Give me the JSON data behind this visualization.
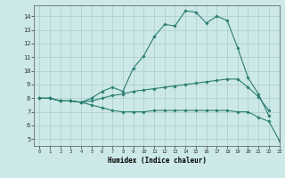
{
  "title": "",
  "xlabel": "Humidex (Indice chaleur)",
  "bg_color": "#cce8e8",
  "grid_color": "#aacccc",
  "line_color": "#2a7f6f",
  "xlim": [
    -0.5,
    23
  ],
  "ylim": [
    4.5,
    14.8
  ],
  "yticks": [
    5,
    6,
    7,
    8,
    9,
    10,
    11,
    12,
    13,
    14
  ],
  "xticks": [
    0,
    1,
    2,
    3,
    4,
    5,
    6,
    7,
    8,
    9,
    10,
    11,
    12,
    13,
    14,
    15,
    16,
    17,
    18,
    19,
    20,
    21,
    22,
    23
  ],
  "line1_x": [
    0,
    1,
    2,
    3,
    4,
    5,
    6,
    7,
    8,
    9,
    10,
    11,
    12,
    13,
    14,
    15,
    16,
    17,
    18,
    19,
    20,
    21,
    22
  ],
  "line1_y": [
    8.0,
    8.0,
    7.8,
    7.8,
    7.7,
    8.0,
    8.5,
    8.8,
    8.5,
    10.2,
    11.1,
    12.5,
    13.4,
    13.3,
    14.4,
    14.3,
    13.5,
    14.0,
    13.7,
    11.7,
    9.5,
    8.3,
    6.7
  ],
  "line2_x": [
    0,
    1,
    2,
    3,
    4,
    5,
    6,
    7,
    8,
    9,
    10,
    11,
    12,
    13,
    14,
    15,
    16,
    17,
    18,
    19,
    20,
    21,
    22
  ],
  "line2_y": [
    8.0,
    8.0,
    7.8,
    7.8,
    7.7,
    7.8,
    8.0,
    8.2,
    8.3,
    8.5,
    8.6,
    8.7,
    8.8,
    8.9,
    9.0,
    9.1,
    9.2,
    9.3,
    9.4,
    9.4,
    8.8,
    8.1,
    7.1
  ],
  "line3_x": [
    0,
    1,
    2,
    3,
    4,
    5,
    6,
    7,
    8,
    9,
    10,
    11,
    12,
    13,
    14,
    15,
    16,
    17,
    18,
    19,
    20,
    21,
    22,
    23
  ],
  "line3_y": [
    8.0,
    8.0,
    7.8,
    7.8,
    7.7,
    7.5,
    7.3,
    7.1,
    7.0,
    7.0,
    7.0,
    7.1,
    7.1,
    7.1,
    7.1,
    7.1,
    7.1,
    7.1,
    7.1,
    7.0,
    7.0,
    6.6,
    6.3,
    4.9
  ]
}
